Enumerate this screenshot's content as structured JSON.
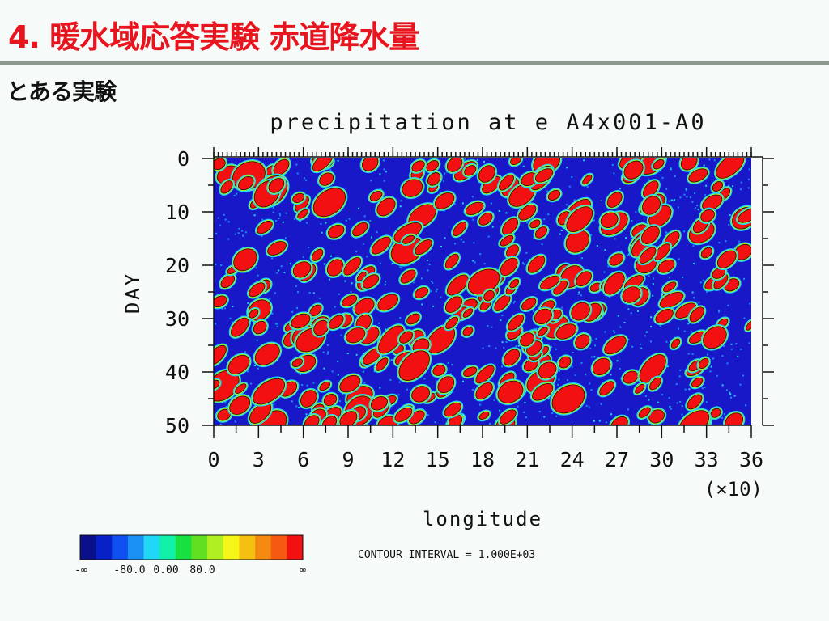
{
  "slide": {
    "title": "4. 暖水域応答実験 赤道降水量",
    "subtitle": "とある実験"
  },
  "colors": {
    "title": "#e8141e",
    "palette": [
      "#0a0f8a",
      "#0820c8",
      "#1050f0",
      "#1a90f5",
      "#20d8f5",
      "#10f0a8",
      "#18e040",
      "#60e020",
      "#b0f020",
      "#f5f518",
      "#f5c010",
      "#f58a10",
      "#f55a10",
      "#f21010"
    ],
    "field_background": "#1818c8"
  },
  "chart_data": {
    "type": "heatmap",
    "title": "precipitation at e A4x001-A0",
    "xlabel": "longitude",
    "x_multiplier_label": "(×10)",
    "ylabel": "DAY",
    "x_ticks": [
      "0",
      "3",
      "6",
      "9",
      "12",
      "15",
      "18",
      "21",
      "24",
      "27",
      "30",
      "33",
      "36"
    ],
    "y_ticks": [
      "0",
      "10",
      "20",
      "30",
      "40",
      "50"
    ],
    "xlim": [
      0,
      36
    ],
    "ylim": [
      0,
      50
    ],
    "y_inverted": true,
    "colorbar": {
      "labels": [
        "-∞",
        "-80.0",
        "0.00",
        "80.0",
        "∞"
      ],
      "n_colors": 14
    },
    "footer": "CONTOUR INTERVAL = 1.000E+03",
    "note": "pattern of scattered intense precipitation cells (red) over low background (blue); values not individually labeled"
  }
}
